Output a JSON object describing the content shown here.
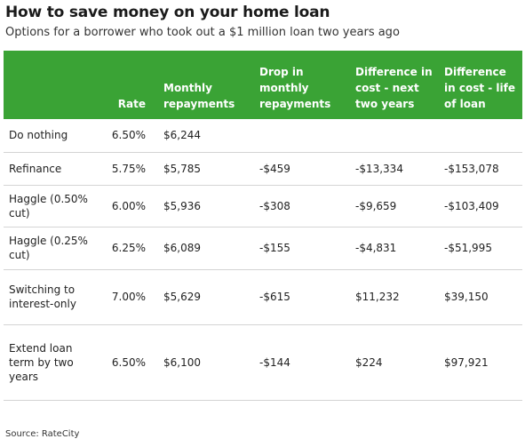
{
  "title": "How to save money on your home loan",
  "subtitle": "Options for a borrower who took out a $1 million loan two years ago",
  "source": "Source: RateCity",
  "colors": {
    "header_bg": "#3aa335",
    "header_text": "#ffffff",
    "row_border": "#d4d4d4"
  },
  "chart_data": {
    "type": "table",
    "columns": [
      "",
      "Rate",
      "Monthly repayments",
      "Drop in monthly repayments",
      "Difference in cost - next two years",
      "Difference in cost - life of loan"
    ],
    "rows": [
      [
        "Do nothing",
        "6.50%",
        "$6,244",
        "",
        "",
        ""
      ],
      [
        "Refinance",
        "5.75%",
        "$5,785",
        "-$459",
        "-$13,334",
        "-$153,078"
      ],
      [
        "Haggle (0.50% cut)",
        "6.00%",
        "$5,936",
        "-$308",
        "-$9,659",
        "-$103,409"
      ],
      [
        "Haggle (0.25% cut)",
        "6.25%",
        "$6,089",
        "-$155",
        "-$4,831",
        "-$51,995"
      ],
      [
        "Switching to interest-only",
        "7.00%",
        "$5,629",
        "-$615",
        "$11,232",
        "$39,150"
      ],
      [
        "Extend loan term by two years",
        "6.50%",
        "$6,100",
        "-$144",
        "$224",
        "$97,921"
      ]
    ]
  }
}
